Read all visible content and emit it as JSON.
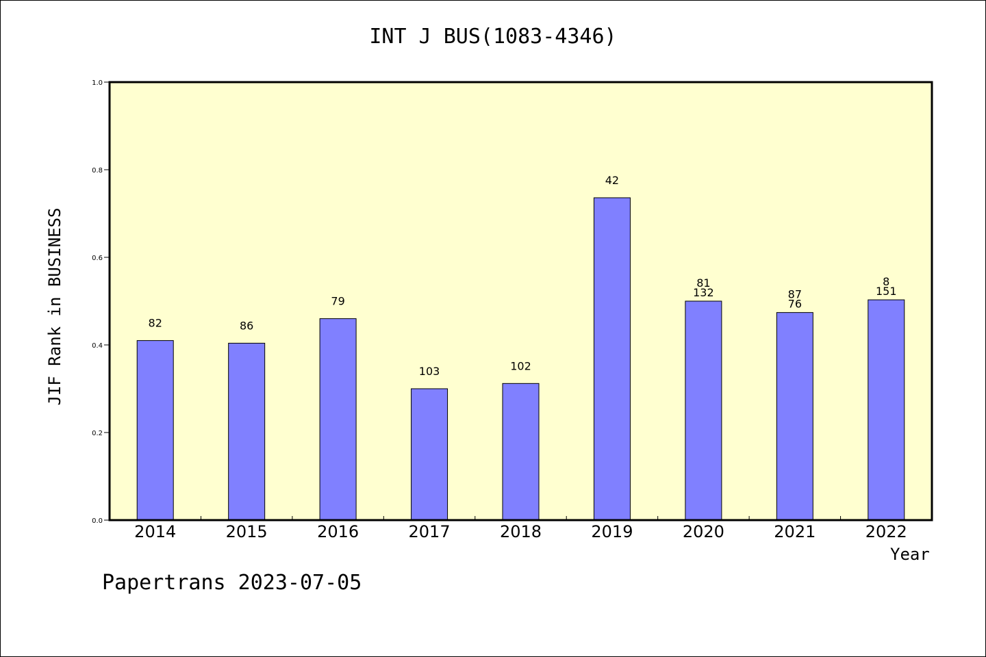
{
  "footer": "Papertrans 2023-07-05",
  "chart_data": {
    "type": "bar",
    "title": "INT J BUS(1083-4346)",
    "xlabel": "Year",
    "ylabel": "JIF Rank in BUSINESS",
    "ylim": [
      0,
      1.0
    ],
    "yticks": [
      "0.0",
      "0.2",
      "0.4",
      "0.6",
      "0.8",
      "1.0"
    ],
    "categories": [
      "2014",
      "2015",
      "2016",
      "2017",
      "2018",
      "2019",
      "2020",
      "2021",
      "2022"
    ],
    "values": [
      0.41,
      0.404,
      0.46,
      0.3,
      0.312,
      0.736,
      0.5,
      0.474,
      0.503
    ],
    "bar_labels": [
      [
        "82"
      ],
      [
        "86"
      ],
      [
        "79"
      ],
      [
        "103"
      ],
      [
        "102"
      ],
      [
        "42"
      ],
      [
        "81",
        "132"
      ],
      [
        "87",
        "76"
      ],
      [
        "8",
        "151"
      ]
    ],
    "grid": false,
    "legend": "none",
    "colors": {
      "plot_background": "#ffffd0",
      "bar_fill": "#8080ff",
      "bar_stroke": "#000000"
    }
  }
}
